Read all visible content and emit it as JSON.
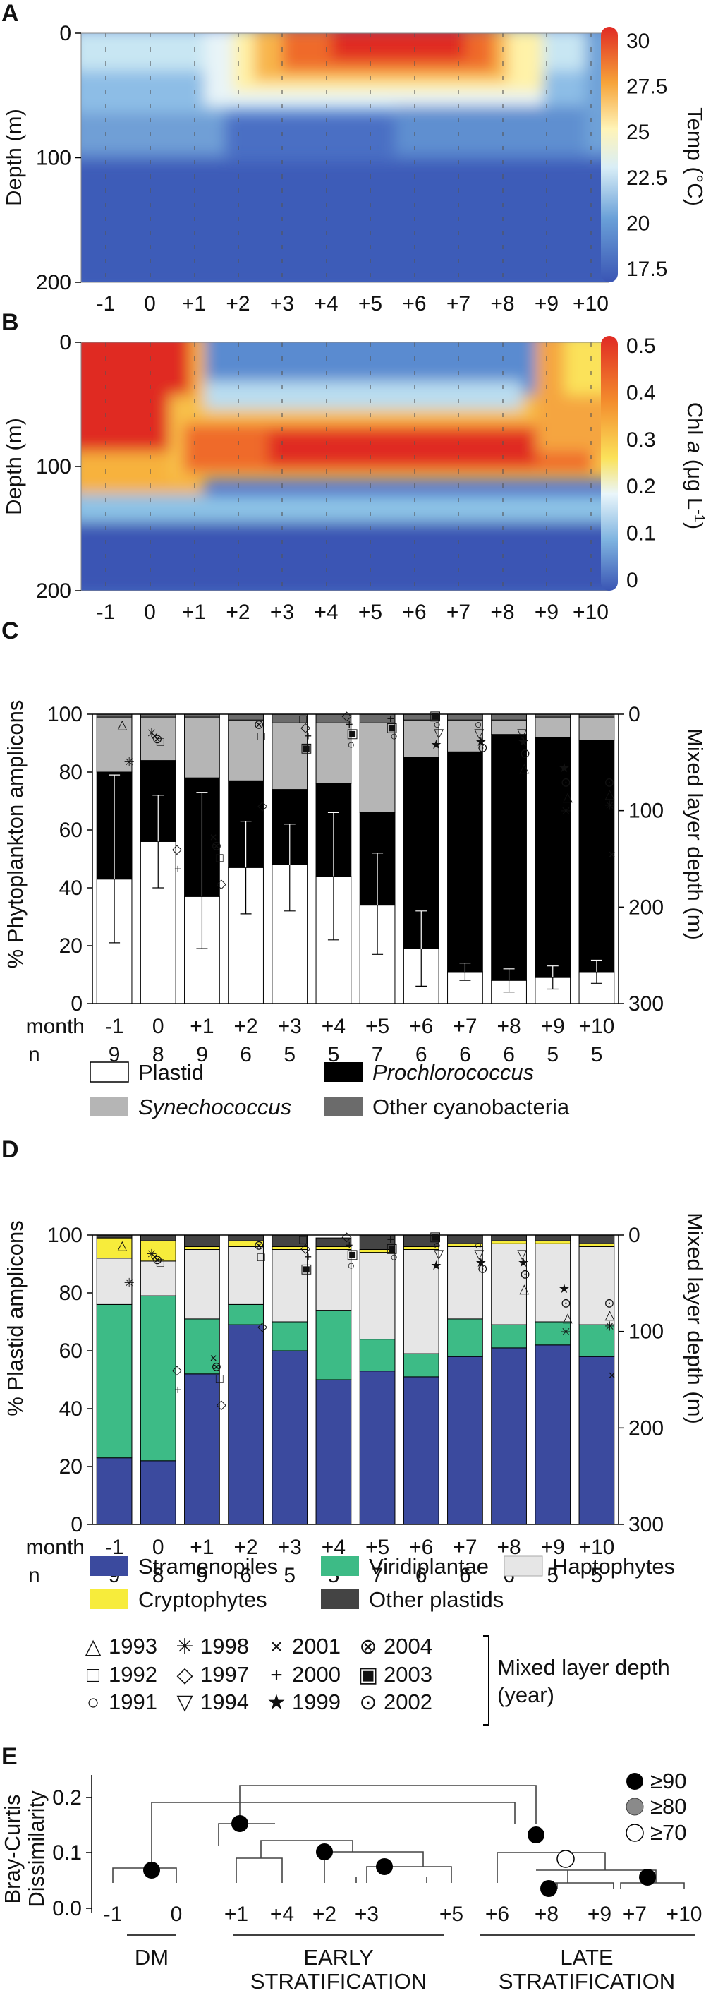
{
  "panels": {
    "A": "A",
    "B": "B",
    "C": "C",
    "D": "D",
    "E": "E"
  },
  "colors": {
    "plastid": "#ffffff",
    "prochlorococcus": "#000000",
    "synechococcus": "#b5b5b5",
    "other_cyanobacteria": "#6b6b6b",
    "stramenopiles": "#3b4a9e",
    "viridiplantae": "#3dbb86",
    "haptophytes": "#e6e6e6",
    "cryptophytes": "#f7ec3b",
    "other_plastids": "#444444",
    "node_90": "#000000",
    "node_80": "#8a8a8a",
    "node_70": "#ffffff"
  },
  "chart_data": [
    {
      "type": "heatmap",
      "id": "A",
      "title": "",
      "ylabel": "Depth (m)",
      "xlabel": "",
      "x_tick_labels": [
        "-1",
        "0",
        "+1",
        "+2",
        "+3",
        "+4",
        "+5",
        "+6",
        "+7",
        "+8",
        "+9",
        "+10"
      ],
      "y_ticks": [
        0,
        100,
        200
      ],
      "ylim": [
        0,
        200
      ],
      "colorbar": {
        "label": "Temp (°C)",
        "ticks": [
          "30",
          "27.5",
          "25",
          "22.5",
          "20",
          "17.5"
        ],
        "range": [
          16.5,
          30
        ]
      },
      "description_values": {
        "summer_surface_max": 29,
        "deep_min": 17
      }
    },
    {
      "type": "heatmap",
      "id": "B",
      "title": "",
      "ylabel": "Depth (m)",
      "xlabel": "",
      "x_tick_labels": [
        "-1",
        "0",
        "+1",
        "+2",
        "+3",
        "+4",
        "+5",
        "+6",
        "+7",
        "+8",
        "+9",
        "+10"
      ],
      "y_ticks": [
        0,
        100,
        200
      ],
      "ylim": [
        0,
        200
      ],
      "colorbar": {
        "label": "Chl a (μg L⁻¹)",
        "label_parts": [
          "Chl ",
          "a",
          " (μg L",
          "-1",
          ")"
        ],
        "ticks": [
          "0.5",
          "0.4",
          "0.3",
          "0.2",
          "0.1",
          "0"
        ],
        "range": [
          0,
          0.5
        ]
      }
    },
    {
      "type": "bar",
      "id": "C",
      "stacked": true,
      "ylabel": "% Phytoplankton amplicons",
      "y2label": "Mixed layer depth (m)",
      "ylim": [
        0,
        100
      ],
      "y_ticks": [
        "0",
        "20",
        "40",
        "60",
        "80",
        "100"
      ],
      "y2lim": [
        0,
        300
      ],
      "y2_ticks": [
        "0",
        "100",
        "200",
        "300"
      ],
      "row_labels": [
        "month",
        "n"
      ],
      "categories": [
        "-1",
        "0",
        "+1",
        "+2",
        "+3",
        "+4",
        "+5",
        "+6",
        "+7",
        "+8",
        "+9",
        "+10"
      ],
      "n": [
        "9",
        "8",
        "9",
        "6",
        "5",
        "5",
        "7",
        "6",
        "6",
        "6",
        "5",
        "5"
      ],
      "series": [
        {
          "name": "Plastid",
          "values": [
            43,
            56,
            37,
            47,
            48,
            44,
            34,
            19,
            11,
            8,
            9,
            11
          ],
          "err": [
            22,
            16,
            18,
            16,
            16,
            22,
            17,
            13,
            3,
            4,
            4,
            4
          ]
        },
        {
          "name": "Prochlorococcus",
          "values": [
            37,
            28,
            41,
            30,
            26,
            32,
            32,
            66,
            76,
            85,
            83,
            80
          ],
          "err": [
            null,
            null,
            null,
            null,
            null,
            null,
            null,
            null,
            null,
            null,
            null,
            null
          ]
        },
        {
          "name": "Synechococcus",
          "values": [
            19,
            15,
            21,
            21,
            23,
            21,
            31,
            13,
            11,
            5,
            7,
            8
          ]
        },
        {
          "name": "Other cyanobacteria",
          "values": [
            1,
            1,
            1,
            2,
            3,
            3,
            3,
            2,
            2,
            2,
            1,
            1
          ]
        }
      ],
      "upper_err": [
        79,
        72,
        73,
        63,
        62,
        66,
        52,
        32,
        14,
        12,
        13,
        15
      ],
      "legend": [
        "Plastid",
        "Prochlorococcus",
        "Synechococcus",
        "Other cyanobacteria"
      ]
    },
    {
      "type": "bar",
      "id": "D",
      "stacked": true,
      "ylabel": "% Plastid amplicons",
      "y2label": "Mixed layer depth (m)",
      "ylim": [
        0,
        100
      ],
      "y_ticks": [
        "0",
        "20",
        "40",
        "60",
        "80",
        "100"
      ],
      "y2lim": [
        0,
        300
      ],
      "y2_ticks": [
        "0",
        "100",
        "200",
        "300"
      ],
      "row_labels": [
        "month",
        "n"
      ],
      "categories": [
        "-1",
        "0",
        "+1",
        "+2",
        "+3",
        "+4",
        "+5",
        "+6",
        "+7",
        "+8",
        "+9",
        "+10"
      ],
      "n": [
        "9",
        "8",
        "9",
        "6",
        "5",
        "5",
        "7",
        "6",
        "6",
        "6",
        "5",
        "5"
      ],
      "series": [
        {
          "name": "Stramenopiles",
          "values": [
            23,
            22,
            52,
            69,
            60,
            50,
            53,
            51,
            58,
            61,
            62,
            58
          ]
        },
        {
          "name": "Viridiplantae",
          "values": [
            53,
            57,
            19,
            7,
            10,
            24,
            11,
            8,
            13,
            8,
            8,
            11
          ]
        },
        {
          "name": "Haptophytes",
          "values": [
            16,
            12,
            24,
            20,
            25,
            21,
            30,
            36,
            25,
            28,
            27,
            27
          ]
        },
        {
          "name": "Cryptophytes",
          "values": [
            7,
            7,
            1,
            2,
            1,
            1,
            1,
            1,
            1,
            1,
            1,
            1
          ]
        },
        {
          "name": "Other plastids",
          "values": [
            1,
            2,
            4,
            2,
            4,
            3,
            5,
            4,
            3,
            2,
            2,
            3
          ]
        }
      ],
      "legend": [
        "Stramenopiles",
        "Viridiplantae",
        "Haptophytes",
        "Cryptophytes",
        "Other plastids"
      ]
    },
    {
      "type": "dendrogram",
      "id": "E",
      "ylabel": "Bray-Curtis Dissimilarity",
      "ylim": [
        0,
        0.2
      ],
      "y_ticks": [
        "0.0",
        "0.1",
        "0.2"
      ],
      "leaves": [
        "-1",
        "0",
        "+1",
        "+4",
        "+2",
        "+3",
        "+5",
        "+6",
        "+8",
        "+9",
        "+7",
        "+10"
      ],
      "groups": [
        "DM",
        "EARLY",
        "STRATIFICATION",
        "LATE",
        "STRATIFICATION"
      ],
      "bootstrap_legend": [
        "≥90",
        "≥80",
        "≥70"
      ]
    }
  ],
  "legend_C": {
    "plastid": "Plastid",
    "prochlorococcus": "Prochlorococcus",
    "synechococcus": "Synechococcus",
    "other_cyanobacteria": "Other cyanobacteria"
  },
  "legend_D": {
    "stramenopiles": "Stramenopiles",
    "viridiplantae": "Viridiplantae",
    "haptophytes": "Haptophytes",
    "cryptophytes": "Cryptophytes",
    "other_plastids": "Other plastids"
  },
  "years_legend": {
    "items": [
      {
        "symbol": "△",
        "year": "1993"
      },
      {
        "symbol": "✳",
        "year": "1998"
      },
      {
        "symbol": "×",
        "year": "2001"
      },
      {
        "symbol": "⊗",
        "year": "2004"
      },
      {
        "symbol": "□",
        "year": "1992"
      },
      {
        "symbol": "◇",
        "year": "1997"
      },
      {
        "symbol": "+",
        "year": "2000"
      },
      {
        "symbol": "▣",
        "year": "2003"
      },
      {
        "symbol": "○",
        "year": "1991"
      },
      {
        "symbol": "▽",
        "year": "1994"
      },
      {
        "symbol": "★",
        "year": "1999"
      },
      {
        "symbol": "⊙",
        "year": "2002"
      }
    ],
    "title_lines": [
      "Mixed layer depth",
      "(year)"
    ]
  }
}
